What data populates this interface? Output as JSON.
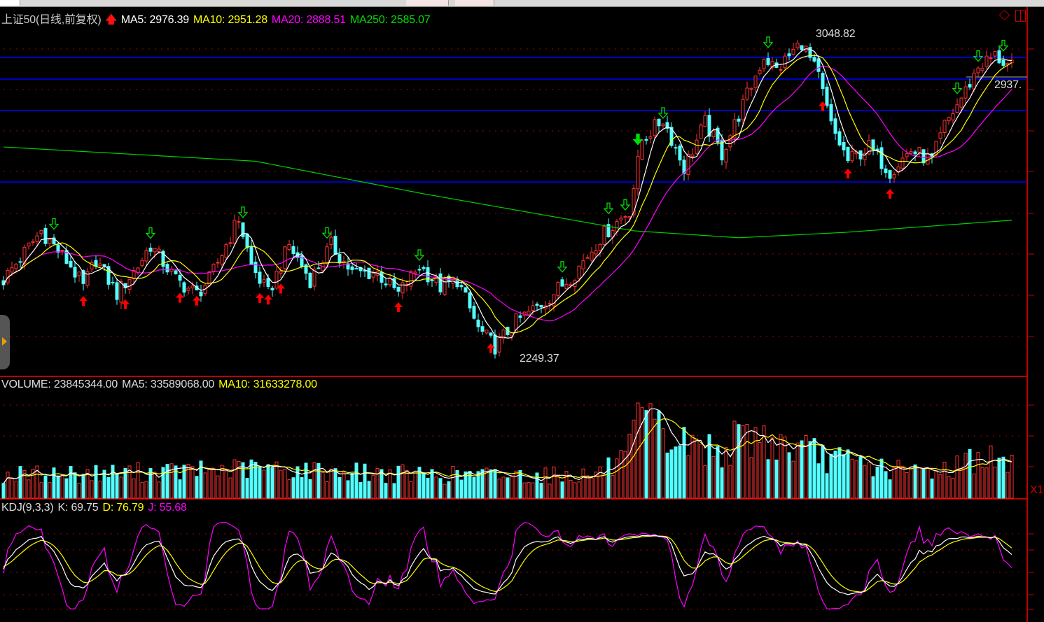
{
  "header": {
    "title": "上证50(日线,前复权)",
    "trend_icon": "red-up-arrow-icon",
    "ma5": "MA5: 2976.39",
    "ma10": "MA10: 2951.28",
    "ma20": "MA20: 2888.51",
    "ma250": "MA250: 2585.07"
  },
  "volume_header": {
    "volume": "VOLUME: 23845344.00",
    "ma5": "MA5: 33589068.00",
    "ma10": "MA10: 31633278.00"
  },
  "kdj_header": {
    "name": "KDJ(9,3,3)",
    "k": "K: 69.75",
    "d": "D: 76.79",
    "j": "J: 55.68"
  },
  "annotations": {
    "high": "3048.82",
    "low": "2249.37",
    "last": "2937."
  },
  "volume_axis_mult": "X1",
  "colors": {
    "up": "#ff3232",
    "down": "#54ffff",
    "ma5": "#ffffff",
    "ma10": "#ffff00",
    "ma20": "#ff00ff",
    "ma250": "#00d000",
    "hline": "#0000ff",
    "axis": "#c00000"
  },
  "chart_data": {
    "type": "candlestick",
    "price_range": [
      2249.37,
      3048.82
    ],
    "close_anchors": [
      [
        0,
        2439
      ],
      [
        9,
        2559
      ],
      [
        16,
        2473
      ],
      [
        19,
        2421
      ],
      [
        22,
        2490
      ],
      [
        27,
        2404
      ],
      [
        32,
        2473
      ],
      [
        35,
        2524
      ],
      [
        41,
        2439
      ],
      [
        46,
        2404
      ],
      [
        49,
        2439
      ],
      [
        56,
        2590
      ],
      [
        59,
        2473
      ],
      [
        63,
        2404
      ],
      [
        68,
        2524
      ],
      [
        73,
        2439
      ],
      [
        78,
        2524
      ],
      [
        83,
        2456
      ],
      [
        89,
        2456
      ],
      [
        94,
        2404
      ],
      [
        99,
        2473
      ],
      [
        104,
        2421
      ],
      [
        108,
        2439
      ],
      [
        113,
        2318
      ],
      [
        117,
        2275
      ],
      [
        122,
        2335
      ],
      [
        129,
        2387
      ],
      [
        136,
        2456
      ],
      [
        142,
        2542
      ],
      [
        149,
        2610
      ],
      [
        152,
        2782
      ],
      [
        157,
        2834
      ],
      [
        162,
        2714
      ],
      [
        167,
        2825
      ],
      [
        171,
        2748
      ],
      [
        176,
        2868
      ],
      [
        181,
        2989
      ],
      [
        184,
        2954
      ],
      [
        190,
        3023
      ],
      [
        194,
        2937
      ],
      [
        197,
        2817
      ],
      [
        201,
        2731
      ],
      [
        206,
        2765
      ],
      [
        211,
        2705
      ],
      [
        216,
        2757
      ],
      [
        221,
        2731
      ],
      [
        224,
        2817
      ],
      [
        229,
        2903
      ],
      [
        232,
        2963
      ],
      [
        236,
        2989
      ],
      [
        240,
        2960
      ]
    ],
    "ma250_anchors": [
      [
        0,
        2765
      ],
      [
        60,
        2730
      ],
      [
        100,
        2650
      ],
      [
        150,
        2559
      ],
      [
        175,
        2542
      ],
      [
        200,
        2555
      ],
      [
        240,
        2585
      ]
    ],
    "horizontal_lines": [
      2985,
      2932,
      2855,
      2679
    ],
    "volume_anchors_millions": [
      [
        0,
        22
      ],
      [
        40,
        25
      ],
      [
        60,
        28
      ],
      [
        100,
        22
      ],
      [
        140,
        22
      ],
      [
        148,
        35
      ],
      [
        152,
        75
      ],
      [
        158,
        55
      ],
      [
        170,
        45
      ],
      [
        178,
        60
      ],
      [
        190,
        45
      ],
      [
        200,
        35
      ],
      [
        215,
        25
      ],
      [
        225,
        28
      ],
      [
        232,
        40
      ],
      [
        240,
        30
      ]
    ],
    "buy_signals": [
      19,
      29,
      42,
      46,
      61,
      63,
      66,
      94,
      116,
      195,
      201,
      211
    ],
    "sell_signals": [
      12,
      35,
      57,
      77,
      99,
      133,
      144,
      148,
      151,
      157,
      182,
      227,
      232,
      238
    ],
    "strong_sell_signals": [
      151
    ]
  }
}
